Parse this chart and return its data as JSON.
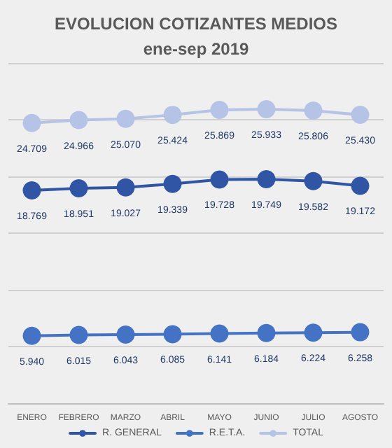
{
  "chart_data": {
    "type": "line",
    "title": "EVOLUCION COTIZANTES MEDIOS",
    "subtitle": "ene-sep 2019",
    "categories": [
      "ENERO",
      "FEBRERO",
      "MARZO",
      "ABRIL",
      "MAYO",
      "JUNIO",
      "JULIO",
      "AGOSTO"
    ],
    "series": [
      {
        "name": "R. GENERAL",
        "color": "#2f55a4",
        "values": [
          18769,
          18951,
          19027,
          19339,
          19728,
          19749,
          19582,
          19172
        ],
        "value_labels": [
          "18.769",
          "18.951",
          "19.027",
          "19.339",
          "19.728",
          "19.749",
          "19.582",
          "19.172"
        ]
      },
      {
        "name": "R.E.T.A.",
        "color": "#4472c4",
        "values": [
          5940,
          6015,
          6043,
          6085,
          6141,
          6184,
          6224,
          6258
        ],
        "value_labels": [
          "5.940",
          "6.015",
          "6.043",
          "6.085",
          "6.141",
          "6.184",
          "6.224",
          "6.258"
        ]
      },
      {
        "name": "TOTAL",
        "color": "#b4c3e6",
        "values": [
          24709,
          24966,
          25070,
          25424,
          25869,
          25933,
          25806,
          25430
        ],
        "value_labels": [
          "24.709",
          "24.966",
          "25.070",
          "25.424",
          "25.869",
          "25.933",
          "25.806",
          "25.430"
        ]
      }
    ],
    "ylim": [
      0,
      30000
    ],
    "yticks": [
      {
        "value": 0,
        "label": null
      },
      {
        "value": 5000,
        "label": null
      },
      {
        "value": 10000,
        "label": null
      },
      {
        "value": 15000,
        "label": null
      },
      {
        "value": 20000,
        "label": null
      },
      {
        "value": 25000,
        "label": null
      },
      {
        "value": 30000,
        "label": null
      }
    ],
    "grid": "y",
    "legend": "bottom",
    "marker": "circle",
    "line_style": "solid",
    "tick_labels": "x"
  }
}
